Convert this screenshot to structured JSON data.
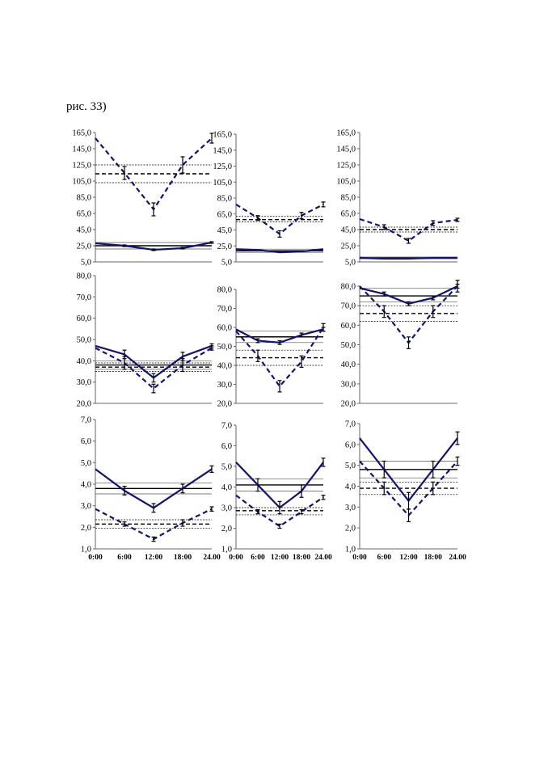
{
  "caption": "рис. 33)",
  "colors": {
    "series": "#14146e",
    "ref": "#000000",
    "accent": "#b04040"
  },
  "chart_data": [
    {
      "type": "line",
      "row": 0,
      "col": 0,
      "ylim": [
        5,
        165
      ],
      "yticks": [
        "5,0",
        "25,0",
        "45,0",
        "65,0",
        "85,0",
        "105,0",
        "125,0",
        "145,0",
        "165,0"
      ],
      "series": [
        {
          "style": "dashed",
          "values": [
            158,
            115,
            70,
            125,
            158
          ],
          "errors": [
            0,
            8,
            8,
            10,
            6
          ]
        },
        {
          "style": "solid",
          "values": [
            28,
            25,
            20,
            22,
            29
          ],
          "errors": [
            0,
            1,
            1,
            1,
            1
          ]
        }
      ],
      "ref_lines": [
        {
          "value": 114,
          "style": "dashed"
        },
        {
          "value": 125,
          "style": "dotted"
        },
        {
          "value": 103,
          "style": "dotted"
        },
        {
          "value": 25,
          "style": "solid"
        },
        {
          "value": 29,
          "style": "thin"
        },
        {
          "value": 21,
          "style": "thin"
        }
      ]
    },
    {
      "type": "line",
      "row": 0,
      "col": 1,
      "ylim": [
        5,
        165
      ],
      "yticks": [
        "5,0",
        "25,0",
        "45,0",
        "65,0",
        "85,0",
        "105,0",
        "125,0",
        "145,0",
        "165,0"
      ],
      "series": [
        {
          "style": "dashed",
          "values": [
            77,
            60,
            40,
            63,
            77
          ],
          "errors": [
            0,
            3,
            4,
            4,
            3
          ]
        },
        {
          "style": "solid",
          "values": [
            21,
            20,
            17,
            18,
            21
          ],
          "errors": [
            0,
            0,
            0,
            0,
            0
          ]
        }
      ],
      "ref_lines": [
        {
          "value": 58,
          "style": "dashed"
        },
        {
          "value": 62,
          "style": "dotted"
        },
        {
          "value": 55,
          "style": "dotted"
        },
        {
          "value": 19,
          "style": "solid"
        },
        {
          "value": 21,
          "style": "thin"
        },
        {
          "value": 17,
          "style": "thin"
        }
      ]
    },
    {
      "type": "line",
      "row": 0,
      "col": 2,
      "ylim": [
        5,
        165
      ],
      "yticks": [
        "5,0",
        "25,0",
        "45,0",
        "65,0",
        "85,0",
        "105,0",
        "125,0",
        "145,0",
        "165,0"
      ],
      "series": [
        {
          "style": "dashed",
          "values": [
            58,
            48,
            31,
            53,
            57
          ],
          "errors": [
            0,
            3,
            3,
            3,
            2
          ]
        },
        {
          "style": "solid",
          "values": [
            10,
            9,
            9,
            10,
            10
          ],
          "errors": [
            0,
            0,
            0,
            0,
            0
          ]
        }
      ],
      "ref_lines": [
        {
          "value": 45,
          "style": "dashed"
        },
        {
          "value": 48,
          "style": "dotted"
        },
        {
          "value": 42,
          "style": "dotted"
        },
        {
          "value": 10,
          "style": "solid"
        },
        {
          "value": 11,
          "style": "thin"
        },
        {
          "value": 9,
          "style": "thin"
        }
      ]
    },
    {
      "type": "line",
      "row": 1,
      "col": 0,
      "ylim": [
        20,
        80
      ],
      "yticks": [
        "20,0",
        "30,0",
        "40,0",
        "50,0",
        "60,0",
        "70,0",
        "80,0"
      ],
      "series": [
        {
          "style": "solid",
          "values": [
            47,
            43,
            32,
            42,
            47
          ],
          "errors": [
            0,
            2,
            2,
            2,
            1
          ]
        },
        {
          "style": "dashed",
          "values": [
            46,
            39,
            27,
            38,
            46
          ],
          "errors": [
            0,
            3,
            2,
            3,
            1
          ]
        }
      ],
      "ref_lines": [
        {
          "value": 38,
          "style": "solid"
        },
        {
          "value": 40,
          "style": "thin"
        },
        {
          "value": 36,
          "style": "thin"
        },
        {
          "value": 37,
          "style": "dashed"
        },
        {
          "value": 39,
          "style": "dotted"
        },
        {
          "value": 35,
          "style": "dotted"
        }
      ]
    },
    {
      "type": "line",
      "row": 1,
      "col": 1,
      "ylim": [
        20,
        80
      ],
      "yticks": [
        "20,0",
        "30,0",
        "40,0",
        "50,0",
        "60,0",
        "70,0",
        "80,0"
      ],
      "series": [
        {
          "style": "solid",
          "values": [
            59,
            53,
            52,
            56,
            59
          ],
          "errors": [
            0,
            1,
            1,
            1,
            1
          ]
        },
        {
          "style": "dashed",
          "values": [
            58,
            45,
            29,
            42,
            60
          ],
          "errors": [
            0,
            3,
            3,
            3,
            2
          ]
        }
      ],
      "ref_lines": [
        {
          "value": 55,
          "style": "solid"
        },
        {
          "value": 58,
          "style": "thin"
        },
        {
          "value": 52,
          "style": "thin"
        },
        {
          "value": 44,
          "style": "dashed"
        },
        {
          "value": 48,
          "style": "dotted"
        },
        {
          "value": 40,
          "style": "dotted"
        }
      ]
    },
    {
      "type": "line",
      "row": 1,
      "col": 2,
      "ylim": [
        20,
        80
      ],
      "yticks": [
        "20,0",
        "30,0",
        "40,0",
        "50,0",
        "60,0",
        "70,0",
        "80,0"
      ],
      "series": [
        {
          "style": "solid",
          "values": [
            79,
            76,
            71,
            74,
            80
          ],
          "errors": [
            0,
            1,
            1,
            1,
            1
          ]
        },
        {
          "style": "dashed",
          "values": [
            80,
            67,
            51,
            67,
            80
          ],
          "errors": [
            0,
            3,
            3,
            3,
            3
          ]
        }
      ],
      "ref_lines": [
        {
          "value": 75,
          "style": "solid"
        },
        {
          "value": 79,
          "style": "thin"
        },
        {
          "value": 72,
          "style": "thin"
        },
        {
          "value": 66,
          "style": "dashed"
        },
        {
          "value": 70,
          "style": "dotted"
        },
        {
          "value": 62,
          "style": "dotted"
        }
      ]
    },
    {
      "type": "line",
      "row": 2,
      "col": 0,
      "ylim": [
        1,
        7
      ],
      "yticks": [
        "1,0",
        "2,0",
        "3,0",
        "4,0",
        "5,0",
        "6,0",
        "7,0"
      ],
      "xticks": [
        "0:00",
        "6:00",
        "12:00",
        "18:00",
        "24.00"
      ],
      "series": [
        {
          "style": "solid",
          "values": [
            4.7,
            3.7,
            2.9,
            3.8,
            4.7
          ],
          "errors": [
            0,
            0.2,
            0.2,
            0.2,
            0.15
          ]
        },
        {
          "style": "dashed",
          "values": [
            2.85,
            2.15,
            1.45,
            2.2,
            2.85
          ],
          "errors": [
            0,
            0.1,
            0.1,
            0.15,
            0.1
          ]
        }
      ],
      "ref_lines": [
        {
          "value": 3.8,
          "style": "solid"
        },
        {
          "value": 4.05,
          "style": "thin"
        },
        {
          "value": 3.55,
          "style": "thin"
        },
        {
          "value": 2.15,
          "style": "dashed"
        },
        {
          "value": 2.35,
          "style": "dotted"
        },
        {
          "value": 1.95,
          "style": "dotted"
        }
      ]
    },
    {
      "type": "line",
      "row": 2,
      "col": 1,
      "ylim": [
        1,
        7
      ],
      "yticks": [
        "1,0",
        "2,0",
        "3,0",
        "4,0",
        "5,0",
        "6,0",
        "7,0"
      ],
      "xticks": [
        "0:00",
        "6:00",
        "12:00",
        "18:00",
        "24.00"
      ],
      "series": [
        {
          "style": "solid",
          "values": [
            5.2,
            4.1,
            3.0,
            3.8,
            5.2
          ],
          "errors": [
            0,
            0.3,
            0.3,
            0.3,
            0.2
          ]
        },
        {
          "style": "dashed",
          "values": [
            3.6,
            2.8,
            2.1,
            2.8,
            3.5
          ],
          "errors": [
            0,
            0.1,
            0.1,
            0.1,
            0.1
          ]
        }
      ],
      "ref_lines": [
        {
          "value": 4.1,
          "style": "solid"
        },
        {
          "value": 4.4,
          "style": "thin"
        },
        {
          "value": 3.8,
          "style": "thin"
        },
        {
          "value": 2.85,
          "style": "dashed"
        },
        {
          "value": 3.0,
          "style": "dotted"
        },
        {
          "value": 2.65,
          "style": "dotted"
        }
      ]
    },
    {
      "type": "line",
      "row": 2,
      "col": 2,
      "ylim": [
        1,
        7
      ],
      "yticks": [
        "1,0",
        "2,0",
        "3,0",
        "4,0",
        "5,0",
        "6,0",
        "7,0"
      ],
      "xticks": [
        "0:00",
        "6:00",
        "12:00",
        "18:00",
        "24.00"
      ],
      "series": [
        {
          "style": "solid",
          "values": [
            6.3,
            4.8,
            3.3,
            4.8,
            6.3
          ],
          "errors": [
            0,
            0.4,
            0.4,
            0.4,
            0.3
          ]
        },
        {
          "style": "dashed",
          "values": [
            5.2,
            3.9,
            2.6,
            3.9,
            5.2
          ],
          "errors": [
            0,
            0.3,
            0.3,
            0.3,
            0.2
          ]
        }
      ],
      "ref_lines": [
        {
          "value": 4.8,
          "style": "solid"
        },
        {
          "value": 5.2,
          "style": "thin"
        },
        {
          "value": 4.4,
          "style": "thin"
        },
        {
          "value": 3.9,
          "style": "dashed"
        },
        {
          "value": 4.2,
          "style": "dotted"
        },
        {
          "value": 3.6,
          "style": "dotted"
        }
      ]
    }
  ]
}
